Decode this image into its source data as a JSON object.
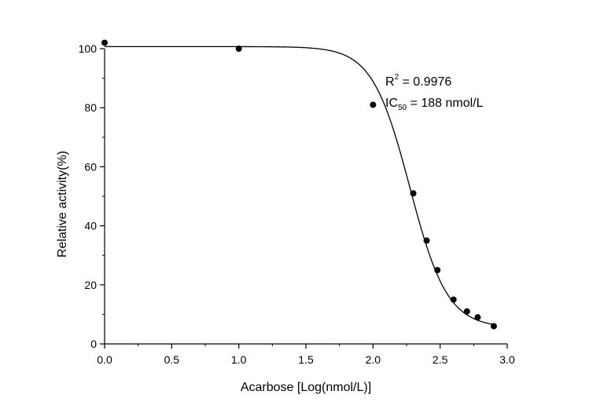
{
  "chart_data": {
    "type": "scatter",
    "xlabel": "Acarbose [Log(nmol/L)]",
    "ylabel": "Relative activity(%)",
    "xlim": [
      0,
      3.0
    ],
    "ylim": [
      0,
      100
    ],
    "xticks": [
      "0.0",
      "0.5",
      "1.0",
      "1.5",
      "2.0",
      "2.5",
      "3.0"
    ],
    "yticks": [
      "0",
      "20",
      "40",
      "60",
      "80",
      "100"
    ],
    "grid": false,
    "points": [
      {
        "x": 0.0,
        "y": 102
      },
      {
        "x": 1.0,
        "y": 100
      },
      {
        "x": 2.0,
        "y": 81
      },
      {
        "x": 2.3,
        "y": 51
      },
      {
        "x": 2.4,
        "y": 35
      },
      {
        "x": 2.48,
        "y": 25
      },
      {
        "x": 2.6,
        "y": 15
      },
      {
        "x": 2.7,
        "y": 11
      },
      {
        "x": 2.78,
        "y": 9
      },
      {
        "x": 2.9,
        "y": 6
      }
    ],
    "fit": {
      "type": "logistic",
      "top": 100.7,
      "bottom": 5.5,
      "log_ic50": 2.274,
      "hill": 3.1,
      "x_range": [
        0,
        2.9
      ]
    },
    "annotations": {
      "r2_label": "R",
      "r2_sup": "2",
      "r2_value": " = 0.9976",
      "ic50_label": "IC",
      "ic50_sub": "50",
      "ic50_value": " = 188 nmol/L"
    }
  }
}
